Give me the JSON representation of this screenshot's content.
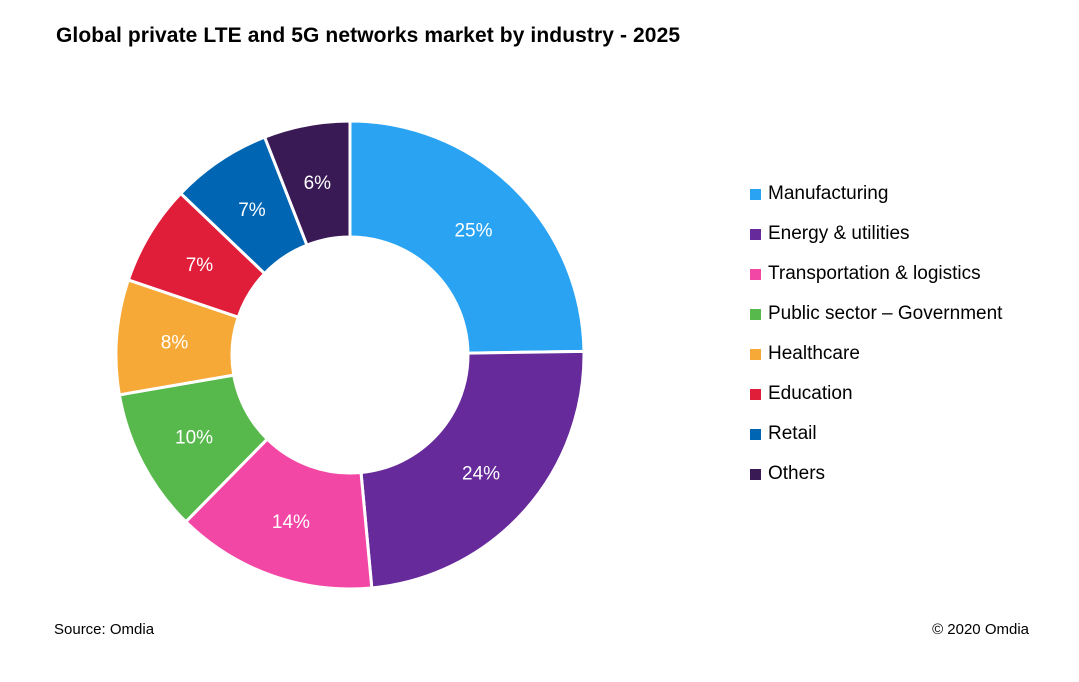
{
  "page": {
    "title": "Global private LTE and 5G networks market by industry - 2025",
    "source": "Source: Omdia",
    "copyright": "© 2020 Omdia"
  },
  "chart_data": {
    "type": "pie",
    "style": "donut",
    "title": "Global private LTE and 5G networks market by industry - 2025",
    "legend_position": "right",
    "categories": [
      "Manufacturing",
      "Energy & utilities",
      "Transportation & logistics",
      "Public sector – Government",
      "Healthcare",
      "Education",
      "Retail",
      "Others"
    ],
    "values": [
      25,
      24,
      14,
      10,
      8,
      7,
      7,
      6
    ],
    "labels": [
      "25%",
      "24%",
      "14%",
      "10%",
      "8%",
      "7%",
      "7%",
      "6%"
    ],
    "colors": [
      "#2aa3f2",
      "#662a9a",
      "#f347a5",
      "#57b84c",
      "#f7a938",
      "#e01e3a",
      "#0066b3",
      "#3a1a55"
    ]
  }
}
